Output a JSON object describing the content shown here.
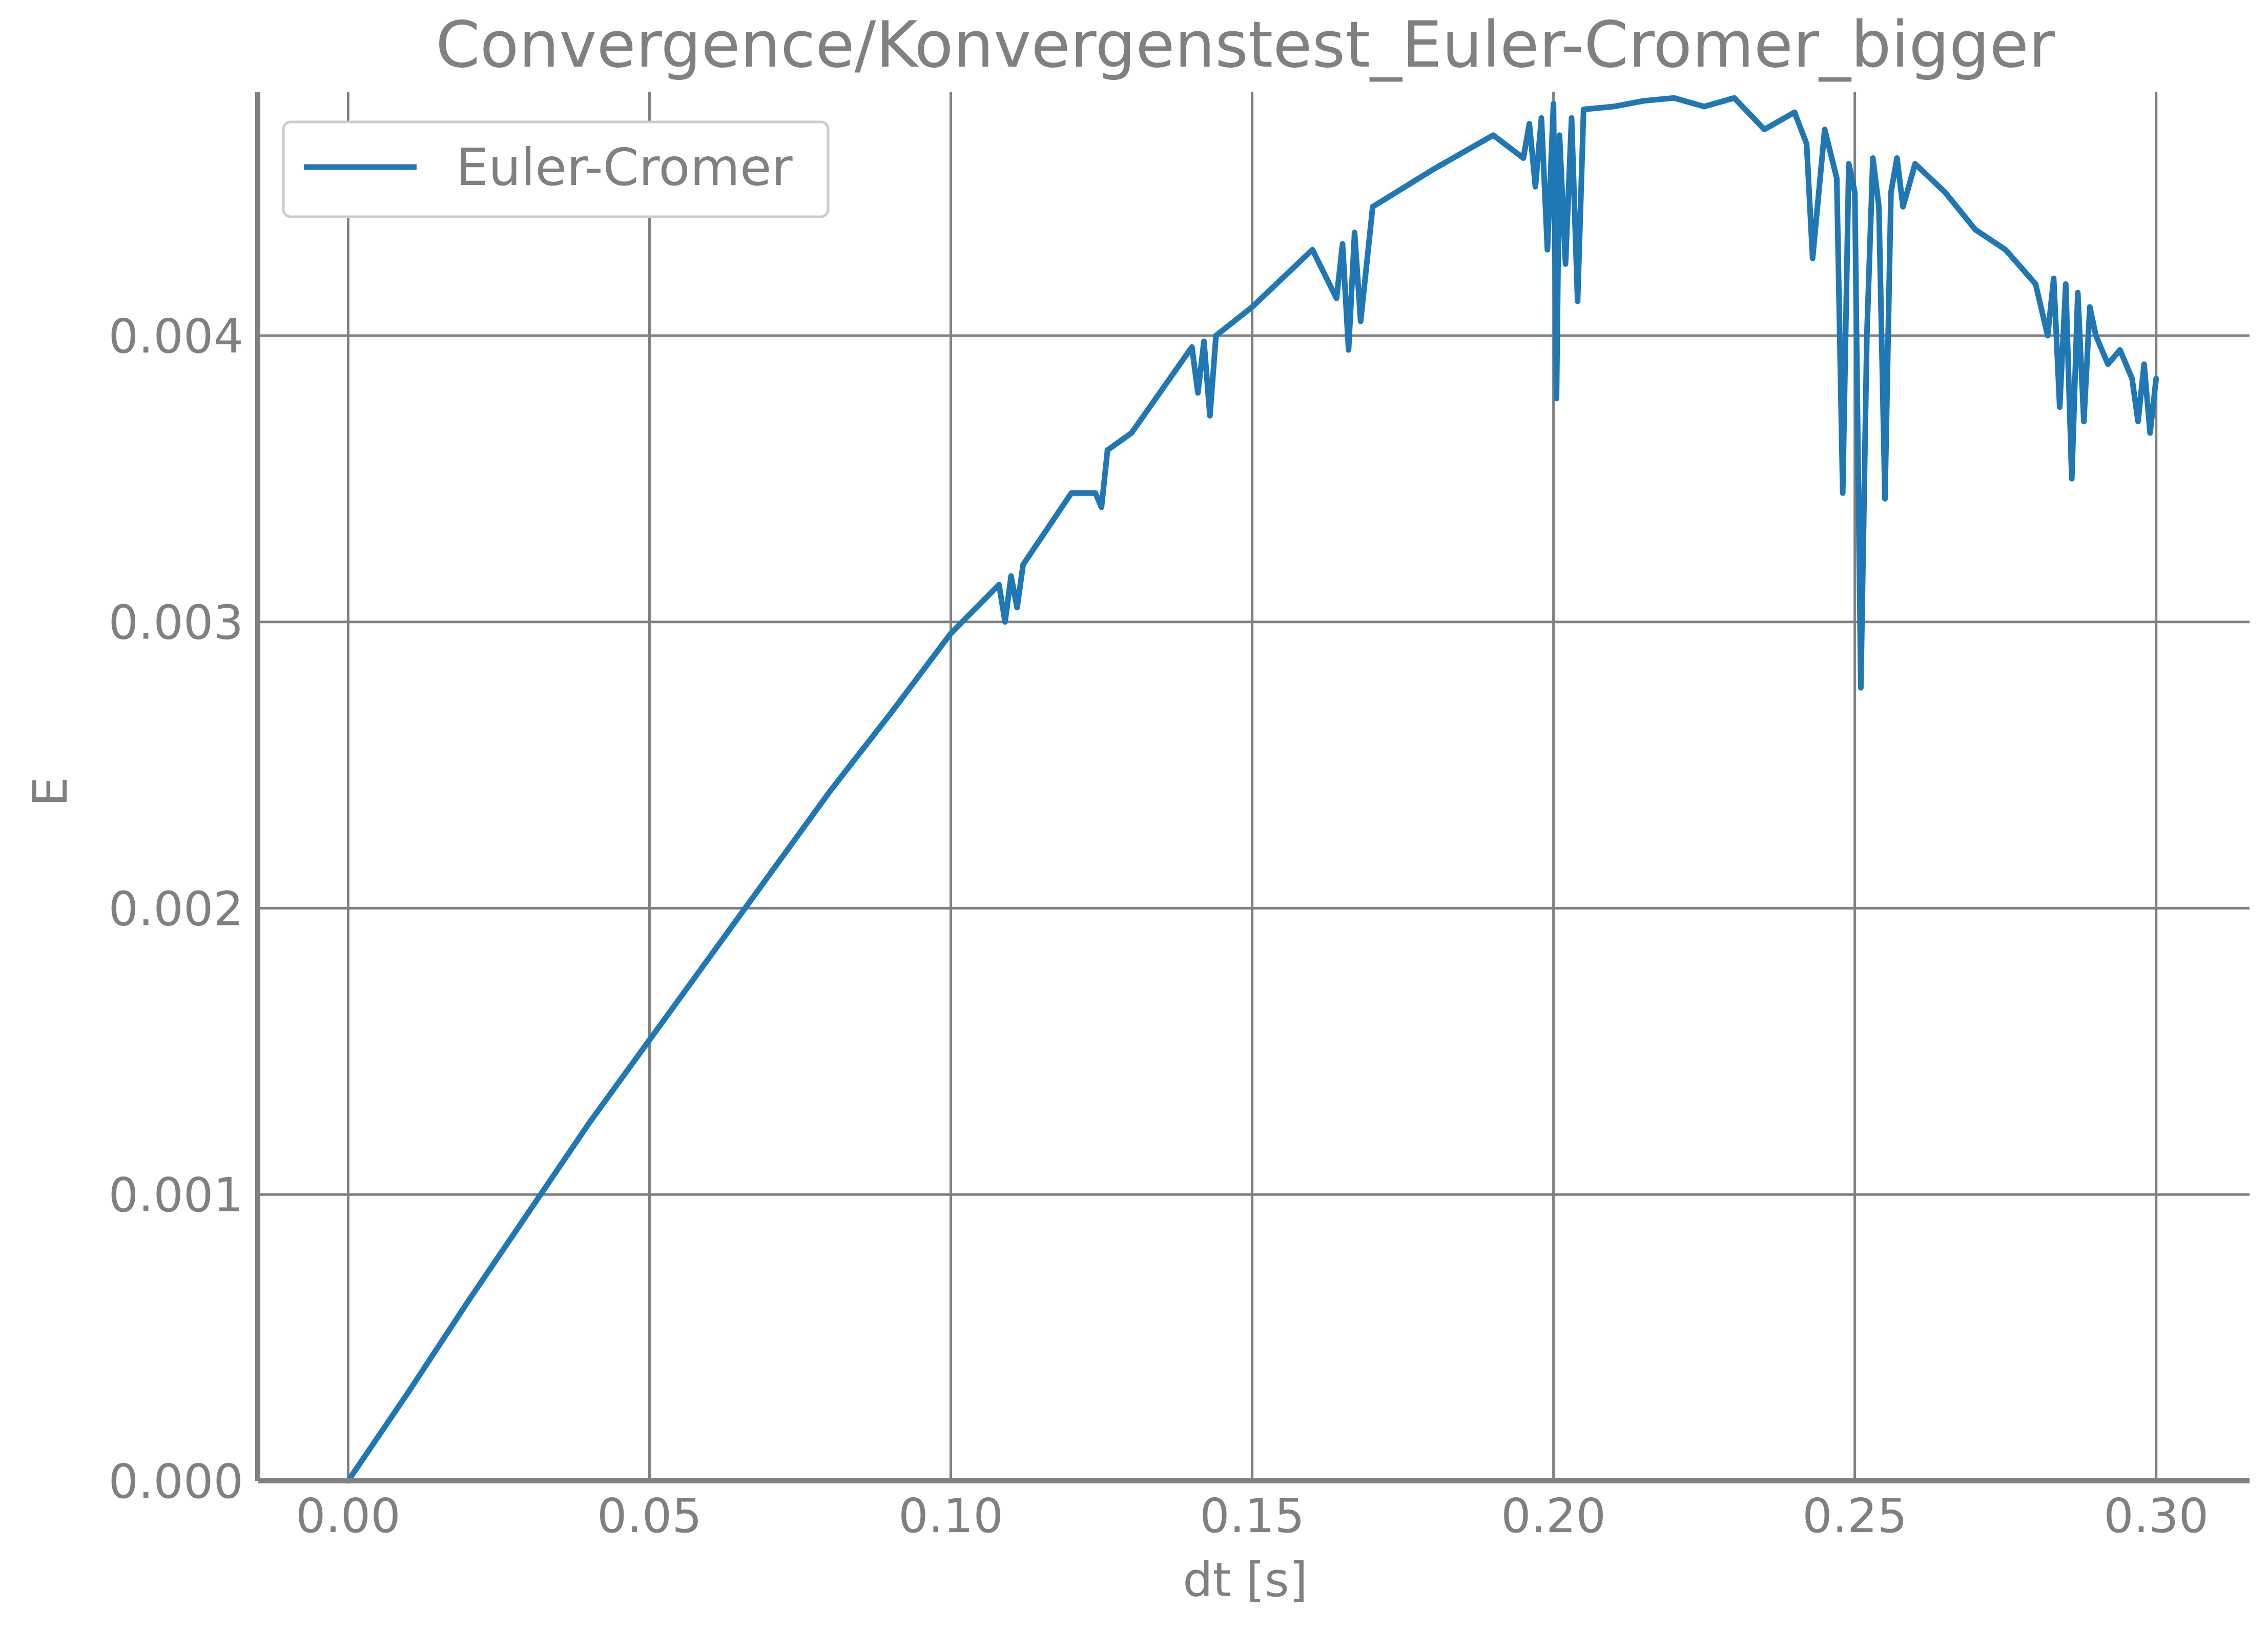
{
  "chart_data": {
    "type": "line",
    "title": "Convergence/Konvergenstest_Euler-Cromer_bigger",
    "xlabel": "dt [s]",
    "ylabel": "E",
    "xlim": [
      -0.015,
      0.3155
    ],
    "ylim": [
      0.0,
      0.00485
    ],
    "xticks": [
      0.0,
      0.05,
      0.1,
      0.15,
      0.2,
      0.25,
      0.3
    ],
    "xtick_labels": [
      "0.00",
      "0.05",
      "0.10",
      "0.15",
      "0.20",
      "0.25",
      "0.30"
    ],
    "yticks": [
      0.0,
      0.001,
      0.002,
      0.003,
      0.004
    ],
    "ytick_labels": [
      "0.000",
      "0.001",
      "0.002",
      "0.003",
      "0.004"
    ],
    "grid": true,
    "legend_position": "top-left",
    "series": [
      {
        "name": "Euler-Cromer",
        "color": "#1f77b4",
        "x": [
          0.0,
          0.01,
          0.02,
          0.03,
          0.04,
          0.05,
          0.06,
          0.07,
          0.08,
          0.09,
          0.1,
          0.108,
          0.109,
          0.11,
          0.111,
          0.112,
          0.12,
          0.124,
          0.125,
          0.126,
          0.13,
          0.14,
          0.141,
          0.142,
          0.143,
          0.144,
          0.15,
          0.16,
          0.164,
          0.165,
          0.166,
          0.167,
          0.168,
          0.17,
          0.18,
          0.19,
          0.195,
          0.196,
          0.197,
          0.198,
          0.199,
          0.2,
          0.2005,
          0.201,
          0.202,
          0.203,
          0.204,
          0.205,
          0.21,
          0.215,
          0.22,
          0.225,
          0.23,
          0.235,
          0.24,
          0.242,
          0.243,
          0.245,
          0.247,
          0.248,
          0.249,
          0.25,
          0.251,
          0.252,
          0.253,
          0.254,
          0.255,
          0.256,
          0.257,
          0.258,
          0.26,
          0.265,
          0.27,
          0.275,
          0.28,
          0.282,
          0.283,
          0.284,
          0.285,
          0.286,
          0.287,
          0.288,
          0.289,
          0.29,
          0.292,
          0.294,
          0.296,
          0.297,
          0.298,
          0.299,
          0.3
        ],
        "y": [
          0.0,
          0.00031,
          0.00063,
          0.00094,
          0.00125,
          0.00154,
          0.00183,
          0.00212,
          0.00241,
          0.00268,
          0.00296,
          0.00313,
          0.003,
          0.00316,
          0.00305,
          0.0032,
          0.00345,
          0.00345,
          0.0034,
          0.0036,
          0.00366,
          0.00396,
          0.0038,
          0.00398,
          0.00372,
          0.004,
          0.0041,
          0.0043,
          0.00413,
          0.00432,
          0.00395,
          0.00436,
          0.00405,
          0.00445,
          0.00458,
          0.0047,
          0.00462,
          0.00474,
          0.00452,
          0.00476,
          0.0043,
          0.00481,
          0.00378,
          0.0047,
          0.00425,
          0.00476,
          0.00412,
          0.00479,
          0.0048,
          0.00482,
          0.00483,
          0.0048,
          0.00483,
          0.00472,
          0.00478,
          0.00467,
          0.00427,
          0.00472,
          0.00455,
          0.00345,
          0.0046,
          0.0045,
          0.00277,
          0.004,
          0.00462,
          0.00445,
          0.00343,
          0.0045,
          0.00462,
          0.00445,
          0.0046,
          0.0045,
          0.00437,
          0.0043,
          0.00418,
          0.004,
          0.0042,
          0.00375,
          0.00418,
          0.0035,
          0.00415,
          0.0037,
          0.0041,
          0.004,
          0.0039,
          0.00395,
          0.00385,
          0.0037,
          0.0039,
          0.00366,
          0.00385
        ]
      }
    ]
  }
}
